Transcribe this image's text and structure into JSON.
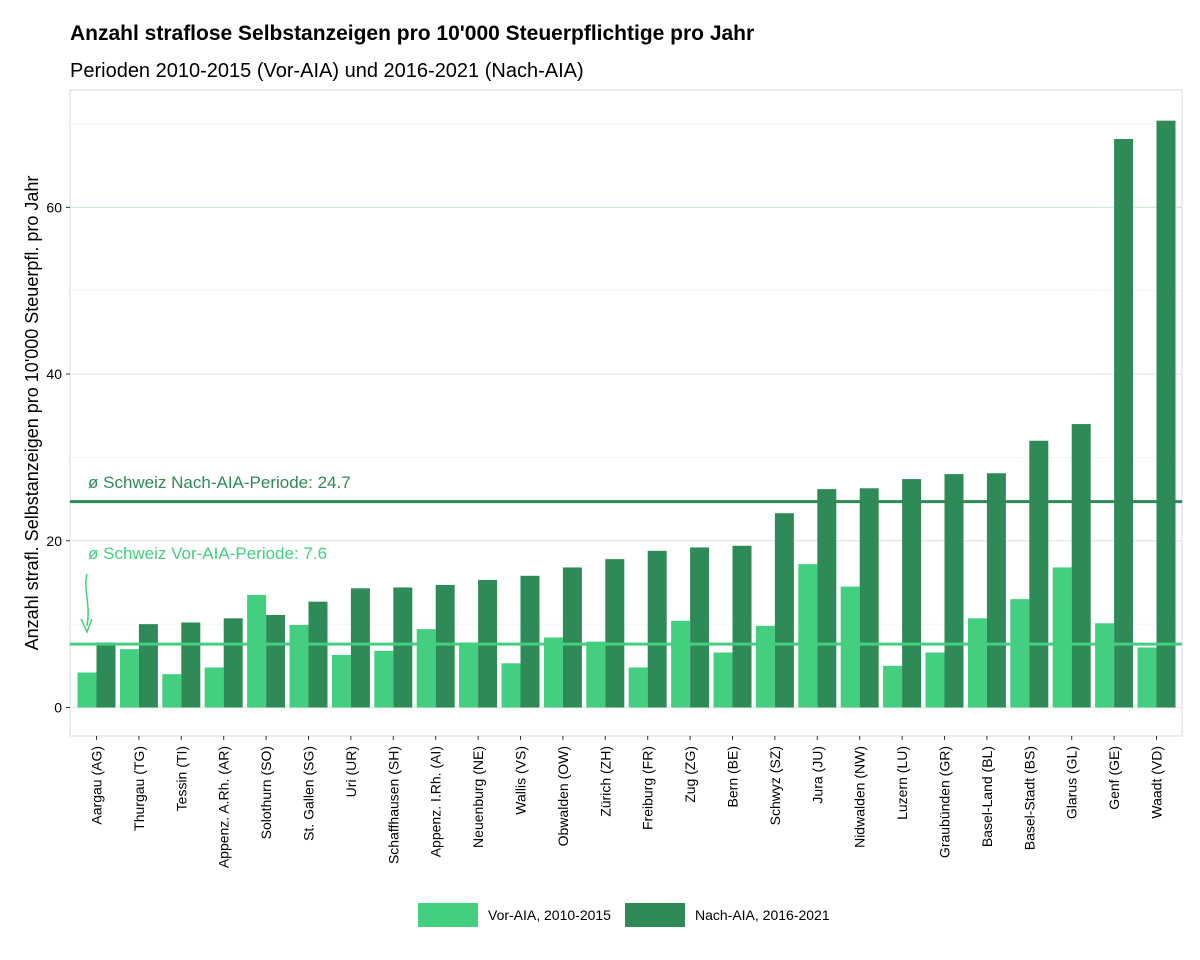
{
  "colors": {
    "vor": "#44ce80",
    "nach": "#2e8b57",
    "grid": "#e5e5e5",
    "grid60": "#cfe9d6",
    "panel_border": "#d9d9d9"
  },
  "chart_data": {
    "type": "bar",
    "title": "Anzahl straflose Selbstanzeigen pro 10'000 Steuerpflichtige pro Jahr",
    "subtitle": "Perioden 2010-2015 (Vor-AIA) und 2016-2021 (Nach-AIA)",
    "xlabel": "",
    "ylabel": "Anzahl strafl. Selbstanzeigen pro 10'000 Steuerpfl. pro Jahr",
    "ylim": [
      -3.5,
      74
    ],
    "yticks": [
      0,
      20,
      40,
      60
    ],
    "grid": true,
    "legend_position": "bottom",
    "categories": [
      "Aargau (AG)",
      "Thurgau (TG)",
      "Tessin (TI)",
      "Appenz. A.Rh. (AR)",
      "Solothurn (SO)",
      "St. Gallen (SG)",
      "Uri (UR)",
      "Schaffhausen (SH)",
      "Appenz. I.Rh. (AI)",
      "Neuenburg (NE)",
      "Wallis (VS)",
      "Obwalden (OW)",
      "Zürich (ZH)",
      "Freiburg (FR)",
      "Zug (ZG)",
      "Bern (BE)",
      "Schwyz (SZ)",
      "Jura (JU)",
      "Nidwalden (NW)",
      "Luzern (LU)",
      "Graubünden (GR)",
      "Basel-Land (BL)",
      "Basel-Stadt (BS)",
      "Glarus (GL)",
      "Genf (GE)",
      "Waadt (VD)"
    ],
    "series": [
      {
        "name": "Vor-AIA, 2010-2015",
        "values": [
          4.2,
          7.0,
          4.0,
          4.8,
          13.5,
          9.9,
          6.3,
          6.8,
          9.4,
          7.8,
          5.3,
          8.4,
          7.9,
          4.8,
          10.4,
          6.6,
          9.8,
          17.2,
          14.5,
          5.0,
          6.6,
          10.7,
          13.0,
          16.8,
          10.1,
          7.2
        ]
      },
      {
        "name": "Nach-AIA, 2016-2021",
        "values": [
          7.8,
          10.0,
          10.2,
          10.7,
          11.1,
          12.7,
          14.3,
          14.4,
          14.7,
          15.3,
          15.8,
          16.8,
          17.8,
          18.8,
          19.2,
          19.4,
          23.3,
          26.2,
          26.3,
          27.4,
          28.0,
          28.1,
          32.0,
          34.0,
          68.2,
          70.4
        ]
      }
    ],
    "reference_lines": [
      {
        "label": "ø Schweiz Nach-AIA-Periode: 24.7",
        "value": 24.7,
        "series": "nach"
      },
      {
        "label": "ø Schweiz Vor-AIA-Periode: 7.6",
        "value": 7.6,
        "series": "vor"
      }
    ]
  }
}
